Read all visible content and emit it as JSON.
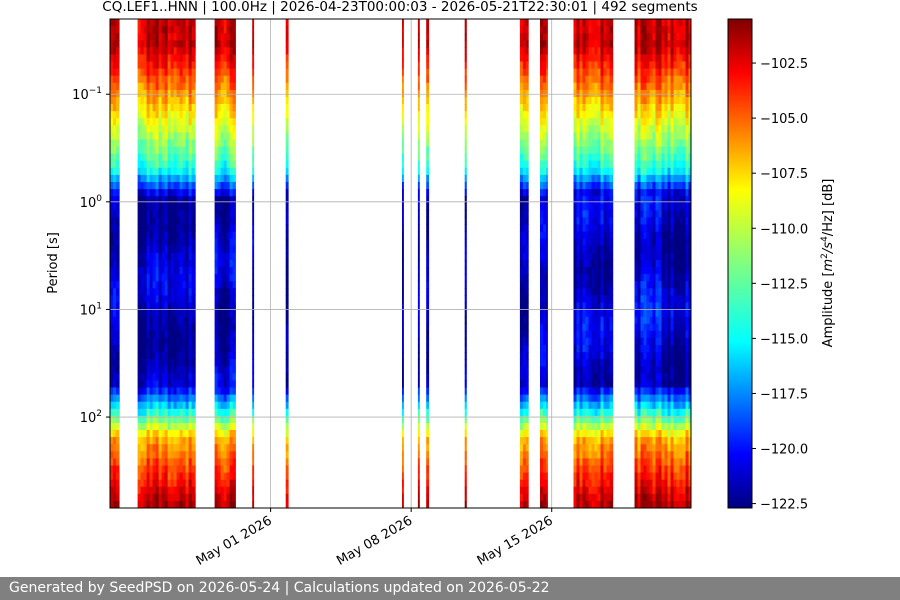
{
  "chart_data": {
    "type": "heatmap",
    "title": "CQ.LEF1..HNN | 100.0Hz | 2026-04-23T00:00:03 - 2026-05-21T22:30:01 | 492 segments",
    "xlabel": "",
    "ylabel": "Period [s]",
    "x_range": [
      "2026-04-23T00:00:03",
      "2026-05-21T22:30:01"
    ],
    "y_range_seconds": [
      0.02,
      700
    ],
    "y_scale": "log",
    "y_ticks": [
      {
        "value": 0.1,
        "base": "10",
        "exp": "−1"
      },
      {
        "value": 1,
        "base": "10",
        "exp": "0"
      },
      {
        "value": 10,
        "base": "10",
        "exp": "1"
      },
      {
        "value": 100,
        "base": "10",
        "exp": "2"
      }
    ],
    "x_ticks": [
      {
        "date": "2026-05-01",
        "label": "May 01 2026"
      },
      {
        "date": "2026-05-08",
        "label": "May 08 2026"
      },
      {
        "date": "2026-05-15",
        "label": "May 15 2026"
      }
    ],
    "grid": true,
    "colormap": "jet",
    "colorbar": {
      "label_prefix": "Amplitude [",
      "label_unit": "m",
      "label_sup1": "2",
      "label_mid": "/s",
      "label_sup2": "4",
      "label_suffix": "/Hz] [dB]",
      "range": [
        -122.7,
        -100.5
      ],
      "ticks": [
        "−102.5",
        "−105.0",
        "−107.5",
        "−110.0",
        "−112.5",
        "−115.0",
        "−117.5",
        "−120.0",
        "−122.5"
      ],
      "tick_values": [
        -102.5,
        -105.0,
        -107.5,
        -110.0,
        -112.5,
        -115.0,
        -117.5,
        -120.0,
        -122.5
      ]
    },
    "data_segments": [
      {
        "start": "2026-04-23T00:00",
        "end": "2026-04-23T11:00"
      },
      {
        "start": "2026-04-24T09:00",
        "end": "2026-04-27T06:00"
      },
      {
        "start": "2026-04-28T05:00",
        "end": "2026-04-29T06:00"
      },
      {
        "start": "2026-04-30T02:00",
        "end": "2026-04-30T03:00"
      },
      {
        "start": "2026-05-01T18:00",
        "end": "2026-05-01T21:00"
      },
      {
        "start": "2026-05-07T13:00",
        "end": "2026-05-07T14:00"
      },
      {
        "start": "2026-05-08T08:00",
        "end": "2026-05-08T09:00"
      },
      {
        "start": "2026-05-08T18:00",
        "end": "2026-05-08T21:00"
      },
      {
        "start": "2026-05-10T16:00",
        "end": "2026-05-10T18:00"
      },
      {
        "start": "2026-05-13T10:00",
        "end": "2026-05-13T20:00"
      },
      {
        "start": "2026-05-14T10:00",
        "end": "2026-05-14T19:00"
      },
      {
        "start": "2026-05-16T02:00",
        "end": "2026-05-18T01:00"
      },
      {
        "start": "2026-05-19T03:00",
        "end": "2026-05-21T22:30"
      }
    ]
  },
  "footer": {
    "text": "Generated by SeedPSD on 2026-05-24 | Calculations updated on 2026-05-22"
  }
}
